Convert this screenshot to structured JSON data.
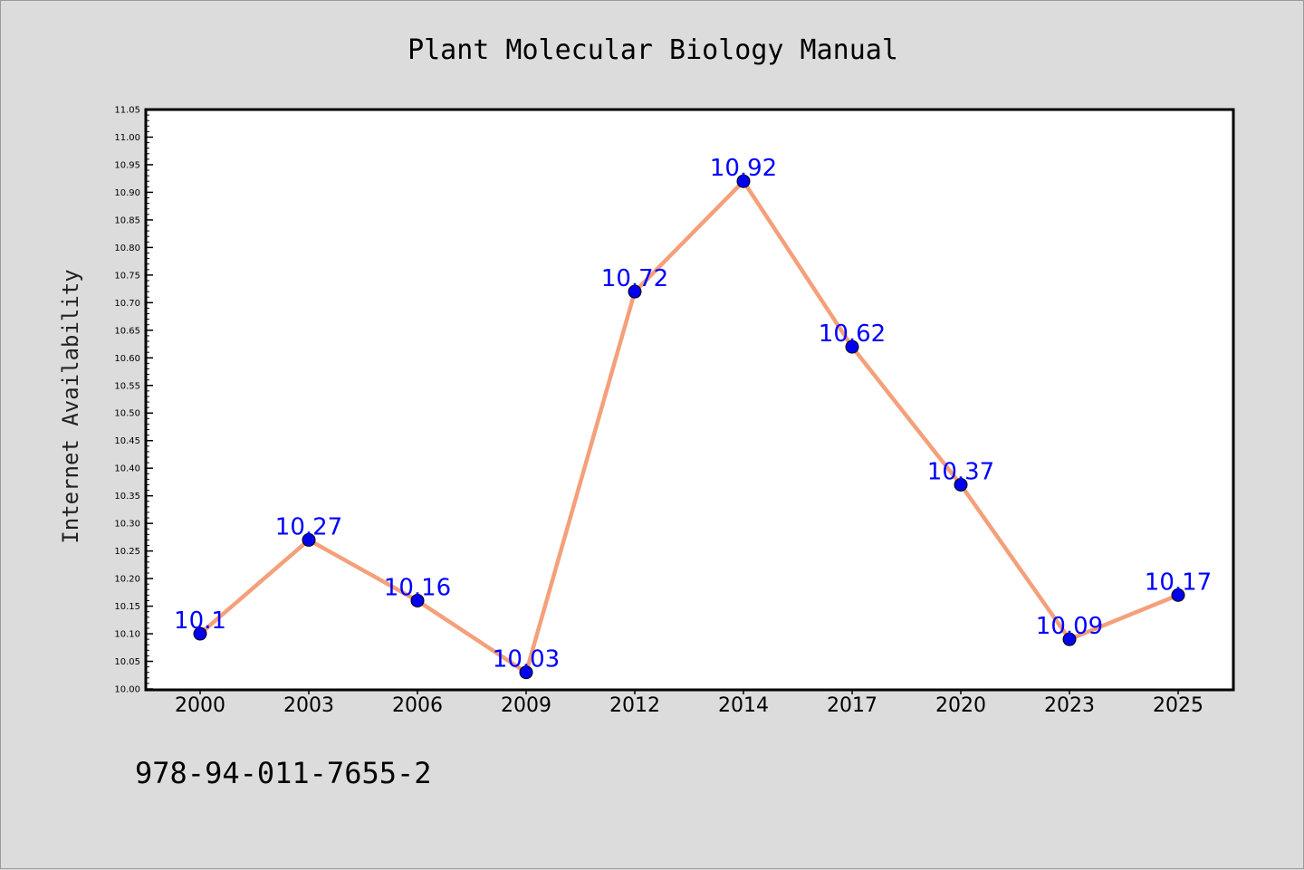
{
  "chart_data": {
    "type": "line",
    "title": "Plant Molecular Biology Manual",
    "ylabel": "Internet Availability",
    "xlabel": "",
    "categories": [
      "2000",
      "2003",
      "2006",
      "2009",
      "2012",
      "2014",
      "2017",
      "2020",
      "2023",
      "2025"
    ],
    "series": [
      {
        "values": [
          10.1,
          10.27,
          10.16,
          10.03,
          10.72,
          10.92,
          10.62,
          10.37,
          10.09,
          10.17
        ],
        "data_labels": [
          "10.1",
          "10.27",
          "10.16",
          "10.03",
          "10.72",
          "10.92",
          "10.62",
          "10.37",
          "10.09",
          "10.17"
        ],
        "line_color": "#f4a07a",
        "marker_color": "#0000ee",
        "label_color": "#0000ff"
      }
    ],
    "ylim": [
      10.0,
      11.05
    ],
    "yticks": [
      "10.00",
      "10.05",
      "10.10",
      "10.15",
      "10.20",
      "10.25",
      "10.30",
      "10.35",
      "10.40",
      "10.45",
      "10.50",
      "10.55",
      "10.60",
      "10.65",
      "10.70",
      "10.75",
      "10.80",
      "10.85",
      "10.90",
      "10.95",
      "11.00",
      "11.05"
    ],
    "grid": false,
    "legend": "none"
  },
  "footer": {
    "isbn": "978-94-011-7655-2"
  },
  "colors": {
    "background": "#dcdcdc",
    "plot_background": "#ffffff"
  }
}
